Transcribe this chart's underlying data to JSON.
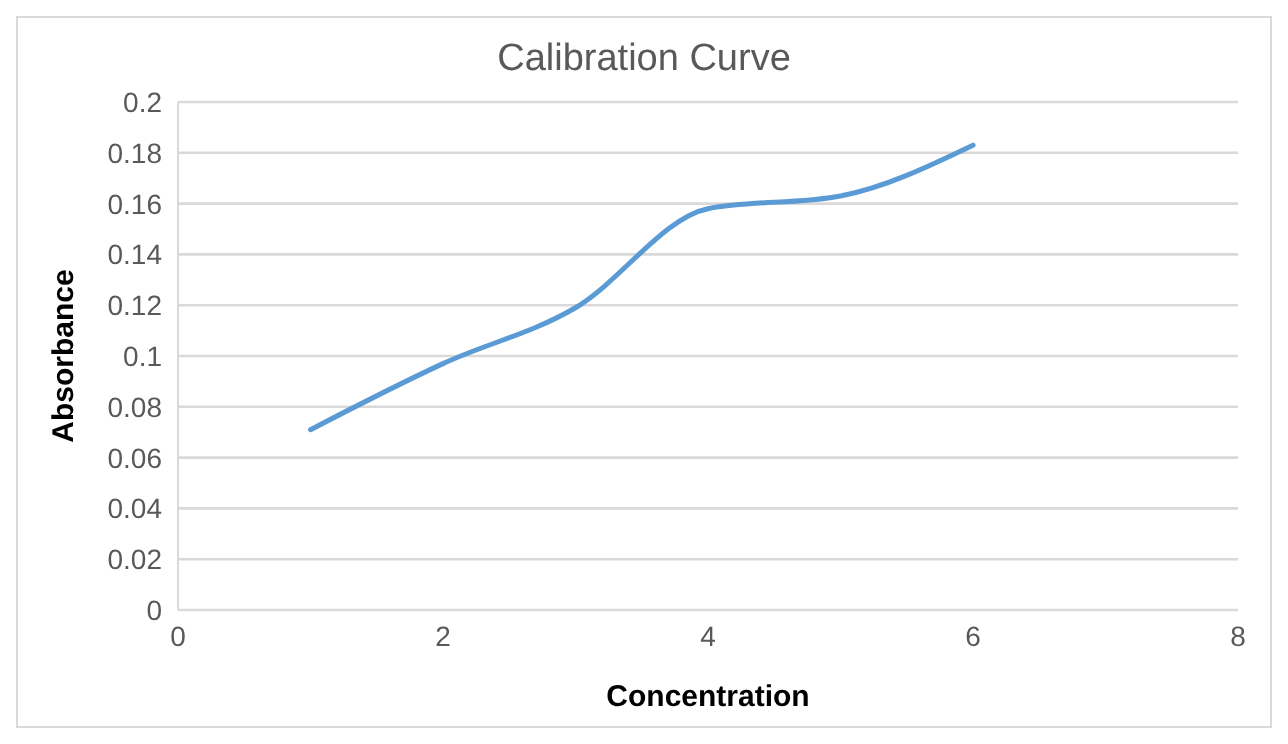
{
  "chart_data": {
    "type": "line",
    "title": "Calibration Curve",
    "xlabel": "Concentration",
    "ylabel": "Absorbance",
    "x": [
      1,
      2,
      3,
      4,
      5,
      6
    ],
    "series": [
      {
        "color": "#5b9bd5",
        "values": [
          0.071,
          0.097,
          0.119,
          0.158,
          0.163,
          0.183
        ]
      }
    ],
    "xlim": [
      0,
      8
    ],
    "xticks": [
      0,
      2,
      4,
      6,
      8
    ],
    "ylim": [
      0,
      0.2
    ],
    "yticks": [
      0,
      0.02,
      0.04,
      0.06,
      0.08,
      0.1,
      0.12,
      0.14,
      0.16,
      0.18,
      0.2
    ],
    "grid": "y",
    "legend": false,
    "marker": "none",
    "line_style": "solid"
  }
}
